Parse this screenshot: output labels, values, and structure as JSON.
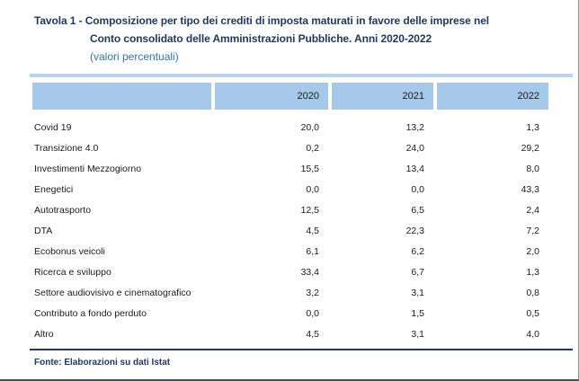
{
  "title": {
    "line1": "Tavola 1 - Composizione per tipo dei crediti di imposta maturati in favore delle imprese nel",
    "line2": "Conto consolidato delle Amministrazioni Pubbliche. Anni 2020-2022",
    "subtitle": "(valori percentuali)"
  },
  "table": {
    "columns": [
      "",
      "2020",
      "2021",
      "2022"
    ],
    "rows": [
      {
        "label": "Covid 19",
        "values": [
          "20,0",
          "13,2",
          "1,3"
        ]
      },
      {
        "label": "Transizione 4.0",
        "values": [
          "0,2",
          "24,0",
          "29,2"
        ]
      },
      {
        "label": "Investimenti Mezzogiorno",
        "values": [
          "15,5",
          "13,4",
          "8,0"
        ]
      },
      {
        "label": "Enegetici",
        "values": [
          "0,0",
          "0,0",
          "43,3"
        ]
      },
      {
        "label": "Autotrasporto",
        "values": [
          "12,5",
          "6,5",
          "2,4"
        ]
      },
      {
        "label": "DTA",
        "values": [
          "4,5",
          "22,3",
          "7,2"
        ]
      },
      {
        "label": "Ecobonus veicoli",
        "values": [
          "6,1",
          "6,2",
          "2,0"
        ]
      },
      {
        "label": "Ricerca e sviluppo",
        "values": [
          "33,4",
          "6,7",
          "1,3"
        ]
      },
      {
        "label": "Settore audiovisivo e cinematografico",
        "values": [
          "3,2",
          "3,1",
          "0,8"
        ]
      },
      {
        "label": "Contributo a fondo perduto",
        "values": [
          "0,0",
          "1,5",
          "0,5"
        ]
      },
      {
        "label": "Altro",
        "values": [
          "4,5",
          "3,1",
          "4,0"
        ]
      }
    ]
  },
  "footer": {
    "source": "Fonte: Elaborazioni su dati Istat"
  },
  "colors": {
    "title_navy": "#1F3864",
    "subtitle_blue": "#2E75B6",
    "header_blue": "#A7C9E9",
    "strip_blue": "#B9D4EE",
    "rule_navy": "#1F3864"
  },
  "chart_data": {
    "type": "table",
    "title": "Tavola 1 - Composizione per tipo dei crediti di imposta maturati in favore delle imprese nel Conto consolidato delle Amministrazioni Pubbliche. Anni 2020-2022",
    "subtitle": "(valori percentuali)",
    "categories": [
      "Covid 19",
      "Transizione 4.0",
      "Investimenti Mezzogiorno",
      "Enegetici",
      "Autotrasporto",
      "DTA",
      "Ecobonus veicoli",
      "Ricerca e sviluppo",
      "Settore audiovisivo e cinematografico",
      "Contributo a fondo perduto",
      "Altro"
    ],
    "series": [
      {
        "name": "2020",
        "values": [
          20.0,
          0.2,
          15.5,
          0.0,
          12.5,
          4.5,
          6.1,
          33.4,
          3.2,
          0.0,
          4.5
        ]
      },
      {
        "name": "2021",
        "values": [
          13.2,
          24.0,
          13.4,
          0.0,
          6.5,
          22.3,
          6.2,
          6.7,
          3.1,
          1.5,
          3.1
        ]
      },
      {
        "name": "2022",
        "values": [
          1.3,
          29.2,
          8.0,
          43.3,
          2.4,
          7.2,
          2.0,
          1.3,
          0.8,
          0.5,
          4.0
        ]
      }
    ],
    "source": "Fonte: Elaborazioni su dati Istat"
  }
}
